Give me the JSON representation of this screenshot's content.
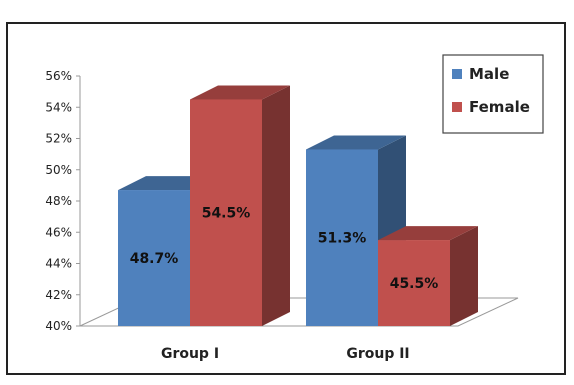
{
  "caption": "",
  "chart_data": {
    "type": "bar",
    "categories": [
      "Group I",
      "Group II"
    ],
    "series": [
      {
        "name": "Male",
        "values": [
          48.7,
          51.3
        ],
        "labels": [
          "48.7%",
          "51.3%"
        ],
        "color": "#4f81bd"
      },
      {
        "name": "Female",
        "values": [
          54.5,
          45.5
        ],
        "labels": [
          "54.5%",
          "45.5%"
        ],
        "color": "#c0504d"
      }
    ],
    "ylim": [
      40,
      56
    ],
    "yticks": [
      "40%",
      "42%",
      "44%",
      "46%",
      "48%",
      "50%",
      "52%",
      "54%",
      "56%"
    ],
    "grid": false,
    "legend": "top-right",
    "style": "3d-clustered-column"
  }
}
